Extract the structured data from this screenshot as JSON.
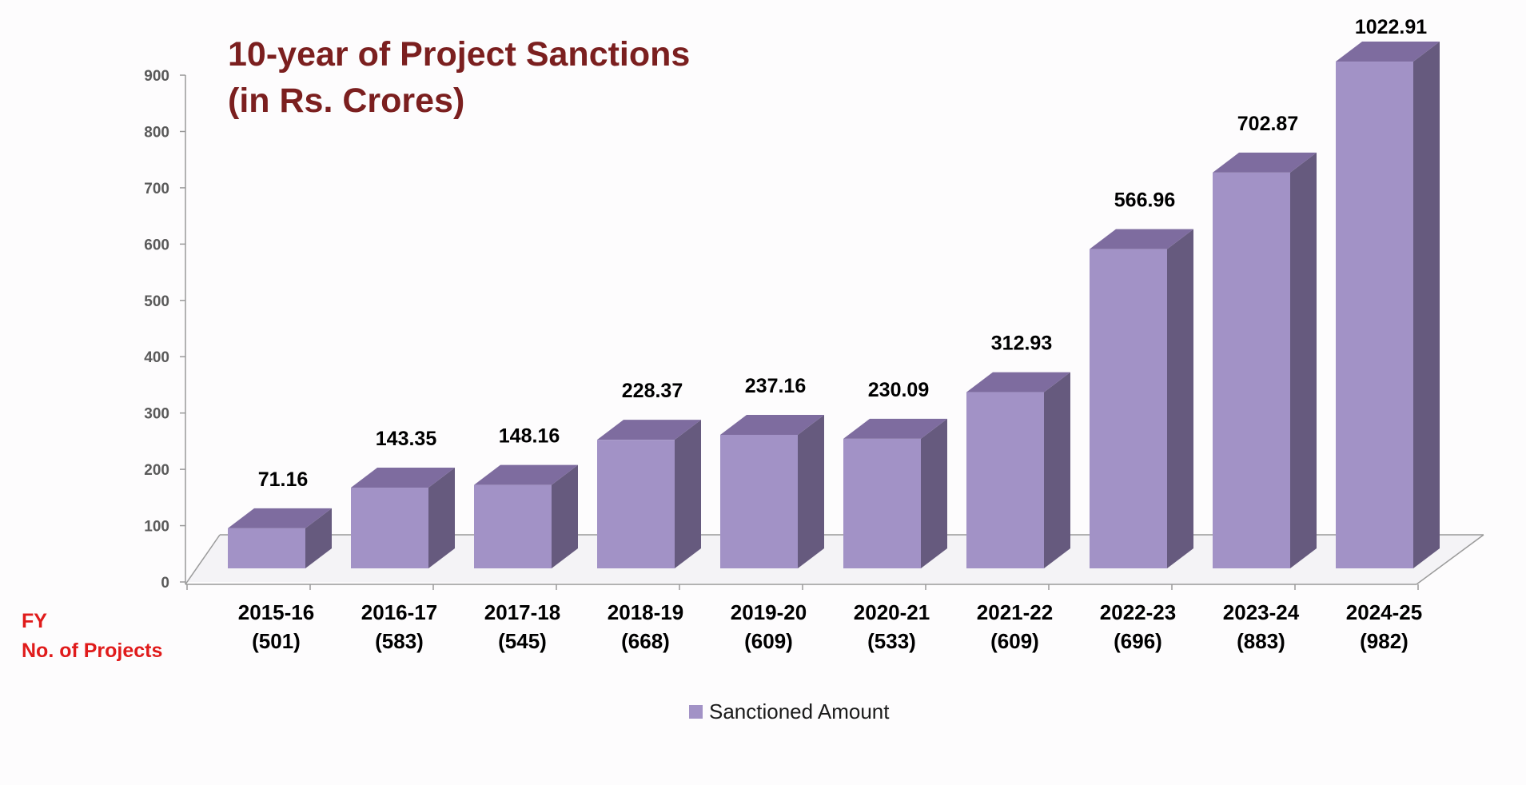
{
  "chart_data": {
    "type": "bar",
    "title_lines": [
      "10-year of Project Sanctions",
      "(in Rs. Crores)"
    ],
    "categories": [
      "2015-16",
      "2016-17",
      "2017-18",
      "2018-19",
      "2019-20",
      "2020-21",
      "2021-22",
      "2022-23",
      "2023-24",
      "2024-25"
    ],
    "category_sublabels": [
      "(501)",
      "(583)",
      "(545)",
      "(668)",
      "(609)",
      "(533)",
      "(609)",
      "(696)",
      "(883)",
      "(982)"
    ],
    "series": [
      {
        "name": "Sanctioned Amount",
        "values": [
          71.16,
          143.35,
          148.16,
          228.37,
          237.16,
          230.09,
          312.93,
          566.96,
          702.87,
          1022.91
        ],
        "data_labels": [
          "71.16",
          "143.35",
          "148.16",
          "228.37",
          "237.16",
          "230.09",
          "312.93",
          "566.96",
          "702.87",
          "1022.91"
        ]
      }
    ],
    "side_labels": [
      "FY",
      "No. of Projects"
    ],
    "yticks": [
      "0",
      "100",
      "200",
      "300",
      "400",
      "500",
      "600",
      "700",
      "800",
      "900"
    ],
    "ylim": [
      0,
      900
    ],
    "grid": false,
    "legend_position": "bottom",
    "style": "3d-column",
    "colors": {
      "bar_front": "#a292c6",
      "bar_top": "#7e6c9f",
      "bar_side": "#665a7e",
      "title": "#7b1f1f",
      "side_labels": "#e01b1b"
    }
  }
}
